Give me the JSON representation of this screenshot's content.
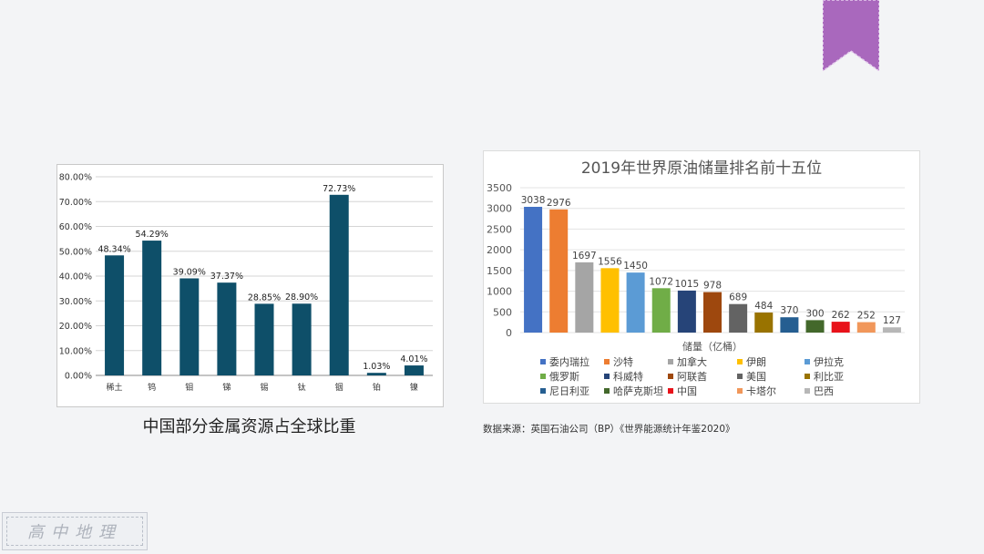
{
  "decor": {
    "bookmark_color": "#a968bd",
    "stamp_text": "高中地理"
  },
  "left_chart": {
    "caption": "中国部分金属资源占全球比重",
    "chart_data": {
      "type": "bar",
      "categories": [
        "稀土",
        "钨",
        "钼",
        "锑",
        "锡",
        "钛",
        "铟",
        "铂",
        "镍"
      ],
      "values": [
        48.34,
        54.29,
        39.09,
        37.37,
        28.85,
        28.9,
        72.73,
        1.03,
        4.01
      ],
      "value_labels": [
        "48.34%",
        "54.29%",
        "39.09%",
        "37.37%",
        "28.85%",
        "28.90%",
        "72.73%",
        "1.03%",
        "4.01%"
      ],
      "y_ticks": [
        "0.00%",
        "10.00%",
        "20.00%",
        "30.00%",
        "40.00%",
        "50.00%",
        "60.00%",
        "70.00%",
        "80.00%"
      ],
      "ylim": [
        0,
        80
      ],
      "grid": true,
      "color": "#0e4f69"
    }
  },
  "right_chart": {
    "source_note": "数据来源：英国石油公司（BP）《世界能源统计年鉴2020》",
    "chart_data": {
      "type": "bar",
      "title": "2019年世界原油储量排名前十五位",
      "xlabel": "储量（亿桶）",
      "categories": [
        "委内瑞拉",
        "沙特",
        "加拿大",
        "伊朗",
        "伊拉克",
        "俄罗斯",
        "科威特",
        "阿联酋",
        "美国",
        "利比亚",
        "尼日利亚",
        "哈萨克斯坦",
        "中国",
        "卡塔尔",
        "巴西"
      ],
      "values": [
        3038,
        2976,
        1697,
        1556,
        1450,
        1072,
        1015,
        978,
        689,
        484,
        370,
        300,
        262,
        252,
        127
      ],
      "colors": [
        "#4472c4",
        "#ed7d31",
        "#a5a5a5",
        "#ffc000",
        "#5b9bd5",
        "#70ad47",
        "#264478",
        "#9e480e",
        "#636363",
        "#997300",
        "#255e91",
        "#43682b",
        "#e8121a",
        "#f1975a",
        "#b7b7b7"
      ],
      "y_ticks": [
        "0",
        "500",
        "1000",
        "1500",
        "2000",
        "2500",
        "3000",
        "3500"
      ],
      "ylim": [
        0,
        3500
      ],
      "grid": true,
      "legend_placement": "bottom"
    }
  }
}
